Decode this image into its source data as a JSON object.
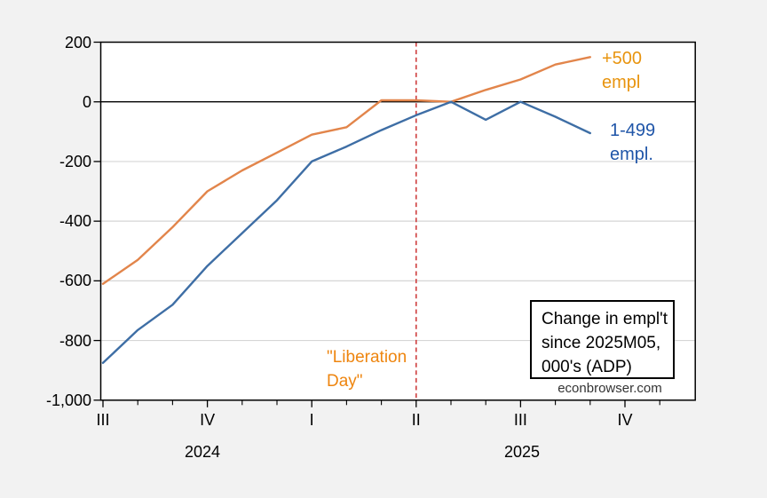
{
  "figure": {
    "background": "#F2F2F2"
  },
  "colors": {
    "plot_bg": "#FFFFFF",
    "frame": "#000000",
    "gridline": "#D6D6D6",
    "zero_line": "#000000",
    "tick": "#000000",
    "text": "#000000",
    "watermark_text": "#333333"
  },
  "chart_data": {
    "type": "line",
    "title": "Change in empl't since 2025M05, 000's (ADP)",
    "annotation_box_lines": [
      "Change in empl't",
      "since 2025M05,",
      "000's (ADP)"
    ],
    "watermark": "econbrowser.com",
    "x": [
      "Jul 2024",
      "Aug 2024",
      "Sep 2024",
      "Oct 2024",
      "Nov 2024",
      "Dec 2024",
      "Jan 2025",
      "Feb 2025",
      "Mar 2025",
      "Apr 2025",
      "May 2025",
      "Jun 2025",
      "Jul 2025",
      "Aug 2025",
      "Sep 2025"
    ],
    "x_tick_labels": [
      "III",
      "IV",
      "I",
      "II",
      "III",
      "IV"
    ],
    "x_tick_month_indices": [
      0,
      3,
      6,
      9,
      12,
      15
    ],
    "n_minor_month_ticks": 17,
    "year_labels": [
      "2024",
      "2025"
    ],
    "y_ticks": [
      {
        "label": "200",
        "value": 200
      },
      {
        "label": "0",
        "value": 0
      },
      {
        "label": "-200",
        "value": -200
      },
      {
        "label": "-400",
        "value": -400
      },
      {
        "label": "-600",
        "value": -600
      },
      {
        "label": "-800",
        "value": -800
      },
      {
        "label": "-1,000",
        "value": -1000
      }
    ],
    "ylim": [
      -1000,
      200
    ],
    "grid": "horizontal-light",
    "series": [
      {
        "name": "+500 empl",
        "label_lines": [
          "+500",
          "empl"
        ],
        "color": "#E2854B",
        "label_color": "#E8940F",
        "values": [
          -610,
          -530,
          -420,
          -300,
          -230,
          -170,
          -110,
          -85,
          5,
          5,
          0,
          40,
          75,
          125,
          150
        ]
      },
      {
        "name": "1-499 empl.",
        "label_lines": [
          "1-499",
          "empl."
        ],
        "color": "#3E6EA5",
        "label_color": "#1F55A8",
        "values": [
          -875,
          -765,
          -680,
          -550,
          -440,
          -330,
          -200,
          -150,
          -95,
          -45,
          0,
          -60,
          0,
          -50,
          -105
        ]
      }
    ],
    "event_line": {
      "label_lines": [
        "\"Liberation",
        "Day\""
      ],
      "month_index": 9,
      "color": "#CC3333",
      "label_color": "#EE850F",
      "style": "dashed"
    }
  }
}
